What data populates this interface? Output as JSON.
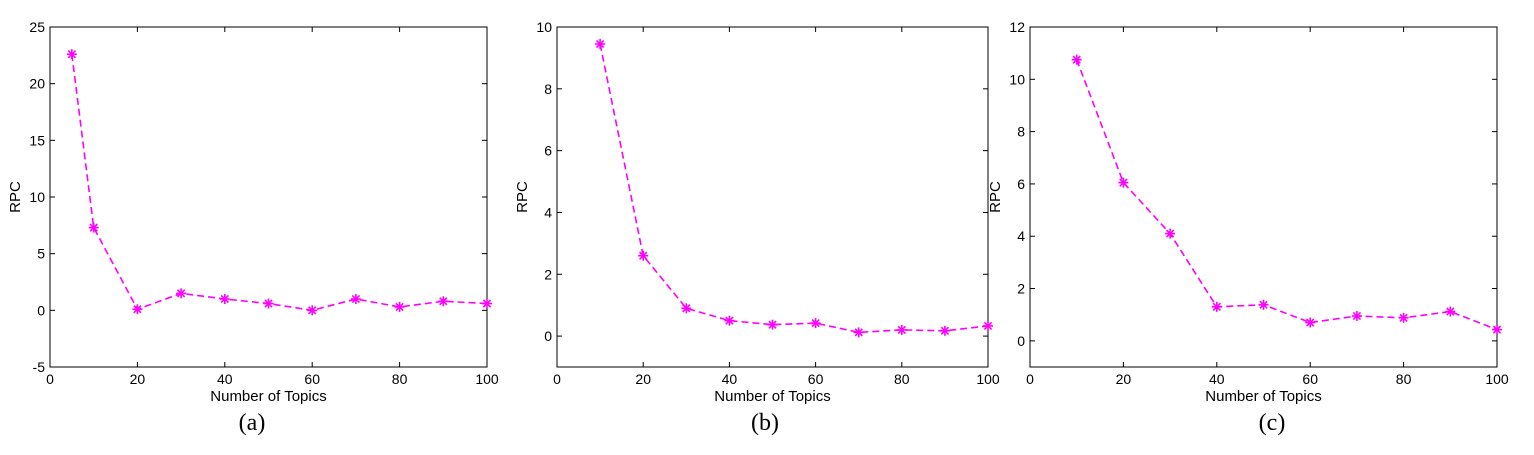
{
  "chart_data": [
    {
      "type": "line",
      "caption": "(a)",
      "xlabel": "Number of Topics",
      "ylabel": "RPC",
      "xlim": [
        0,
        100
      ],
      "ylim": [
        -5,
        25
      ],
      "xticks": [
        0,
        20,
        40,
        60,
        80,
        100
      ],
      "yticks": [
        -5,
        0,
        5,
        10,
        15,
        20,
        25
      ],
      "grid": false,
      "series": [
        {
          "color": "#ff00ff",
          "line_style": "dashed",
          "marker": "asterisk",
          "x": [
            5,
            10,
            20,
            30,
            40,
            50,
            60,
            70,
            80,
            90,
            100
          ],
          "y": [
            22.6,
            7.3,
            0.1,
            1.5,
            1.0,
            0.6,
            0.0,
            1.0,
            0.3,
            0.8,
            0.6
          ]
        }
      ]
    },
    {
      "type": "line",
      "caption": "(b)",
      "xlabel": "Number of Topics",
      "ylabel": "RPC",
      "xlim": [
        0,
        100
      ],
      "ylim": [
        -1,
        10
      ],
      "xticks": [
        0,
        20,
        40,
        60,
        80,
        100
      ],
      "yticks": [
        0,
        2,
        4,
        6,
        8,
        10
      ],
      "grid": false,
      "series": [
        {
          "color": "#ff00ff",
          "line_style": "dashed",
          "marker": "asterisk",
          "x": [
            10,
            20,
            30,
            40,
            50,
            60,
            70,
            80,
            90,
            100
          ],
          "y": [
            9.45,
            2.6,
            0.9,
            0.5,
            0.37,
            0.42,
            0.12,
            0.2,
            0.17,
            0.33
          ]
        }
      ]
    },
    {
      "type": "line",
      "caption": "(c)",
      "xlabel": "Number of Topics",
      "ylabel": "RPC",
      "xlim": [
        0,
        100
      ],
      "ylim": [
        -1,
        12
      ],
      "xticks": [
        0,
        20,
        40,
        60,
        80,
        100
      ],
      "yticks": [
        0,
        2,
        4,
        6,
        8,
        10,
        12
      ],
      "grid": false,
      "series": [
        {
          "color": "#ff00ff",
          "line_style": "dashed",
          "marker": "asterisk",
          "x": [
            10,
            20,
            30,
            40,
            50,
            60,
            70,
            80,
            90,
            100
          ],
          "y": [
            10.75,
            6.05,
            4.1,
            1.3,
            1.38,
            0.7,
            0.95,
            0.88,
            1.12,
            0.43
          ]
        }
      ]
    }
  ]
}
